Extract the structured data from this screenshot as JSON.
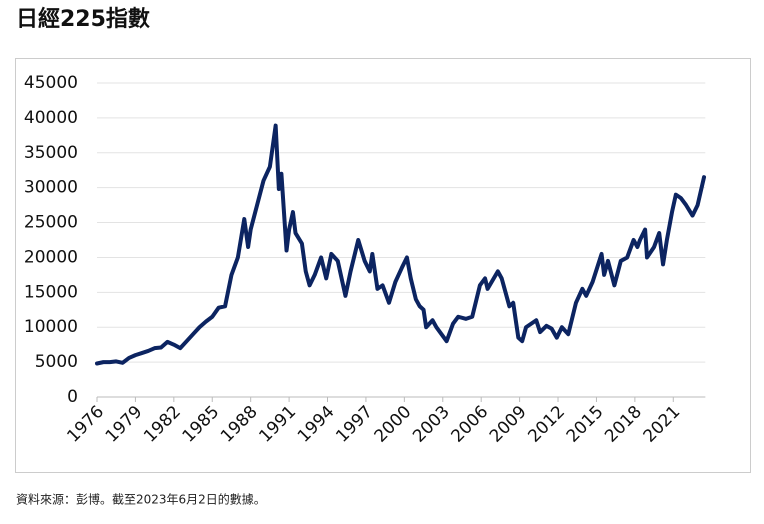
{
  "chart_data": {
    "type": "line",
    "title": "日經225指數",
    "note": "資料來源：彭博。截至2023年6月2日的數據。",
    "x": [
      1976,
      1976.5,
      1977,
      1977.5,
      1978,
      1978.5,
      1979,
      1979.5,
      1980,
      1980.5,
      1981,
      1981.5,
      1982,
      1982.5,
      1983,
      1983.5,
      1984,
      1984.5,
      1985,
      1985.5,
      1986,
      1986.5,
      1987,
      1987.5,
      1987.8,
      1988,
      1988.5,
      1989,
      1989.5,
      1989.95,
      1990.2,
      1990.4,
      1990.8,
      1991,
      1991.3,
      1991.5,
      1992,
      1992.3,
      1992.6,
      1993,
      1993.5,
      1993.9,
      1994.3,
      1994.8,
      1995.4,
      1995.8,
      1996.4,
      1996.9,
      1997.3,
      1997.5,
      1997.9,
      1998.3,
      1998.8,
      1999.3,
      1999.8,
      2000.2,
      2000.5,
      2000.9,
      2001.2,
      2001.5,
      2001.7,
      2002.2,
      2002.5,
      2003.3,
      2003.8,
      2004.2,
      2004.8,
      2005.3,
      2005.9,
      2006.3,
      2006.5,
      2007.3,
      2007.6,
      2008.2,
      2008.5,
      2008.9,
      2009.2,
      2009.5,
      2010.3,
      2010.6,
      2011.1,
      2011.5,
      2011.9,
      2012.3,
      2012.8,
      2013.4,
      2013.9,
      2014.2,
      2014.7,
      2015.4,
      2015.6,
      2015.9,
      2016.4,
      2016.9,
      2017.4,
      2017.9,
      2018.2,
      2018.4,
      2018.8,
      2018.95,
      2019.5,
      2019.9,
      2020.2,
      2020.5,
      2020.9,
      2021.2,
      2021.6,
      2022.0,
      2022.5,
      2022.9,
      2023.4
    ],
    "series": [
      {
        "name": "日經225指數",
        "color": "#0c2461",
        "values": [
          4800,
          5000,
          5000,
          5100,
          4900,
          5600,
          6000,
          6300,
          6600,
          7000,
          7100,
          7900,
          7500,
          7000,
          8000,
          9000,
          10000,
          10800,
          11500,
          12800,
          13000,
          17500,
          20000,
          25500,
          21500,
          24000,
          27500,
          31000,
          33000,
          38900,
          29800,
          32000,
          21000,
          24000,
          26500,
          23500,
          22000,
          18000,
          16000,
          17500,
          20000,
          17000,
          20500,
          19500,
          14500,
          18000,
          22500,
          19500,
          18000,
          20500,
          15500,
          16000,
          13500,
          16500,
          18500,
          20000,
          17000,
          14000,
          13000,
          12500,
          10000,
          11000,
          10000,
          8000,
          10500,
          11500,
          11200,
          11500,
          16000,
          17000,
          15500,
          18000,
          17000,
          13000,
          13500,
          8500,
          8000,
          10000,
          11000,
          9300,
          10200,
          9800,
          8500,
          10000,
          9000,
          13500,
          15500,
          14500,
          16500,
          20500,
          17500,
          19500,
          16000,
          19500,
          20000,
          22500,
          21500,
          22500,
          24000,
          20000,
          21500,
          23500,
          19000,
          22500,
          26500,
          29000,
          28500,
          27500,
          26000,
          27500,
          31500
        ]
      }
    ],
    "xlim": [
      1976,
      2023.5
    ],
    "xticks": [
      1976,
      1979,
      1982,
      1985,
      1988,
      1991,
      1994,
      1997,
      2000,
      2003,
      2006,
      2009,
      2012,
      2015,
      2018,
      2021
    ],
    "ylim": [
      0,
      45000
    ],
    "yticks": [
      0,
      5000,
      10000,
      15000,
      20000,
      25000,
      30000,
      35000,
      40000,
      45000
    ],
    "grid": true
  }
}
